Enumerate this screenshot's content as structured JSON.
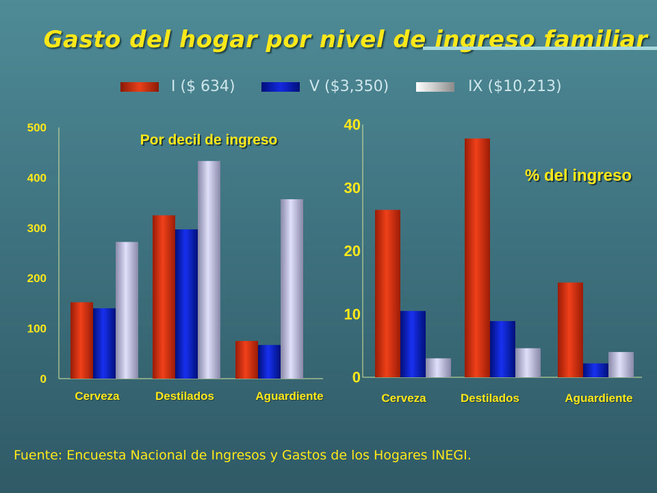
{
  "title": "Gasto del hogar por nivel de ingreso familiar",
  "legend": [
    {
      "label": "I ($ 634)",
      "color": "#e03a10"
    },
    {
      "label": "V ($3,350)",
      "color": "#1420c8"
    },
    {
      "label": "IX ($10,213)",
      "color": "#c6c6ee"
    }
  ],
  "footer": "Fuente: Encuesta Nacional de Ingresos y Gastos de los Hogares INEGI.",
  "chart_data": [
    {
      "type": "bar",
      "title": "Por decil de ingreso",
      "categories": [
        "Cerveza",
        "Destilados",
        "Aguardiente"
      ],
      "series": [
        {
          "name": "I ($ 634)",
          "values": [
            152,
            325,
            75
          ]
        },
        {
          "name": "V ($3,350)",
          "values": [
            140,
            297,
            67
          ]
        },
        {
          "name": "IX ($10,213)",
          "values": [
            272,
            433,
            357
          ]
        }
      ],
      "ylim": [
        0,
        500
      ],
      "yticks": [
        0,
        100,
        200,
        300,
        400,
        500
      ]
    },
    {
      "type": "bar",
      "title": "% del ingreso",
      "categories": [
        "Cerveza",
        "Destilados",
        "Aguardiente"
      ],
      "series": [
        {
          "name": "I ($ 634)",
          "values": [
            26.5,
            37.8,
            15
          ]
        },
        {
          "name": "V ($3,350)",
          "values": [
            10.5,
            8.9,
            2.2
          ]
        },
        {
          "name": "IX ($10,213)",
          "values": [
            3,
            4.6,
            4
          ]
        }
      ],
      "ylim": [
        0,
        40
      ],
      "yticks": [
        0,
        10,
        20,
        30,
        40
      ]
    }
  ]
}
